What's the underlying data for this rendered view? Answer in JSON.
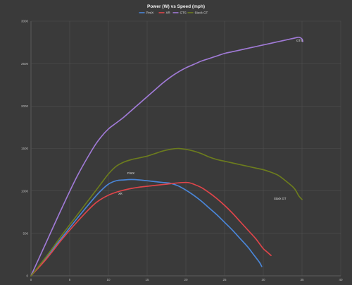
{
  "chart_data": {
    "type": "line",
    "title": "Power (W) vs Speed (mph)",
    "xlabel": "",
    "ylabel": "",
    "xlim": [
      0,
      40
    ],
    "ylim": [
      0,
      3000
    ],
    "x_ticks": [
      0,
      5,
      10,
      15,
      20,
      25,
      30,
      35,
      40
    ],
    "y_ticks": [
      0,
      500,
      1000,
      1500,
      2000,
      2500,
      3000
    ],
    "grid": true,
    "legend_position": "top",
    "series": [
      {
        "name": "PintX",
        "color": "#4a86d8",
        "end_label": "PintX",
        "points": [
          [
            0,
            0
          ],
          [
            2,
            220
          ],
          [
            4,
            450
          ],
          [
            6,
            680
          ],
          [
            8,
            900
          ],
          [
            9,
            1000
          ],
          [
            10,
            1080
          ],
          [
            11,
            1120
          ],
          [
            12,
            1130
          ],
          [
            13,
            1135
          ],
          [
            14,
            1130
          ],
          [
            15,
            1120
          ],
          [
            16,
            1110
          ],
          [
            17,
            1100
          ],
          [
            18,
            1090
          ],
          [
            19,
            1060
          ],
          [
            20,
            1010
          ],
          [
            21,
            950
          ],
          [
            22,
            880
          ],
          [
            23,
            800
          ],
          [
            24,
            720
          ],
          [
            25,
            630
          ],
          [
            26,
            540
          ],
          [
            27,
            440
          ],
          [
            28,
            340
          ],
          [
            28.5,
            280
          ],
          [
            29,
            220
          ],
          [
            29.5,
            160
          ],
          [
            29.8,
            110
          ]
        ]
      },
      {
        "name": "XR",
        "color": "#e0454a",
        "end_label": "XR",
        "points": [
          [
            0,
            0
          ],
          [
            2,
            200
          ],
          [
            4,
            430
          ],
          [
            6,
            640
          ],
          [
            8,
            830
          ],
          [
            9,
            900
          ],
          [
            10,
            950
          ],
          [
            11,
            985
          ],
          [
            12,
            1010
          ],
          [
            13,
            1030
          ],
          [
            14,
            1045
          ],
          [
            15,
            1055
          ],
          [
            16,
            1065
          ],
          [
            17,
            1075
          ],
          [
            18,
            1085
          ],
          [
            19,
            1095
          ],
          [
            20,
            1100
          ],
          [
            20.5,
            1095
          ],
          [
            21,
            1080
          ],
          [
            22,
            1040
          ],
          [
            23,
            980
          ],
          [
            24,
            910
          ],
          [
            25,
            830
          ],
          [
            26,
            740
          ],
          [
            27,
            640
          ],
          [
            28,
            540
          ],
          [
            29,
            440
          ],
          [
            29.5,
            380
          ],
          [
            30,
            320
          ],
          [
            30.5,
            280
          ],
          [
            31,
            240
          ]
        ]
      },
      {
        "name": "GTS",
        "color": "#a07ad6",
        "end_label": "GTS",
        "points": [
          [
            0,
            0
          ],
          [
            2,
            400
          ],
          [
            4,
            800
          ],
          [
            6,
            1180
          ],
          [
            8,
            1500
          ],
          [
            9,
            1630
          ],
          [
            10,
            1730
          ],
          [
            11,
            1800
          ],
          [
            12,
            1870
          ],
          [
            13,
            1950
          ],
          [
            14,
            2030
          ],
          [
            15,
            2110
          ],
          [
            16,
            2190
          ],
          [
            17,
            2270
          ],
          [
            18,
            2340
          ],
          [
            19,
            2400
          ],
          [
            20,
            2450
          ],
          [
            21,
            2490
          ],
          [
            22,
            2530
          ],
          [
            23,
            2560
          ],
          [
            24,
            2590
          ],
          [
            25,
            2620
          ],
          [
            26,
            2640
          ],
          [
            27,
            2660
          ],
          [
            28,
            2680
          ],
          [
            29,
            2700
          ],
          [
            30,
            2720
          ],
          [
            31,
            2740
          ],
          [
            32,
            2760
          ],
          [
            33,
            2780
          ],
          [
            34,
            2800
          ],
          [
            34.6,
            2810
          ],
          [
            35,
            2790
          ],
          [
            35.1,
            2760
          ]
        ]
      },
      {
        "name": "Stock GT",
        "color": "#6c7c1e",
        "end_label": "Stock GT",
        "points": [
          [
            0,
            0
          ],
          [
            2,
            230
          ],
          [
            4,
            480
          ],
          [
            6,
            720
          ],
          [
            8,
            960
          ],
          [
            9,
            1080
          ],
          [
            10,
            1200
          ],
          [
            11,
            1290
          ],
          [
            12,
            1340
          ],
          [
            13,
            1370
          ],
          [
            14,
            1390
          ],
          [
            15,
            1410
          ],
          [
            16,
            1440
          ],
          [
            17,
            1470
          ],
          [
            18,
            1490
          ],
          [
            19,
            1500
          ],
          [
            20,
            1490
          ],
          [
            21,
            1470
          ],
          [
            22,
            1440
          ],
          [
            23,
            1400
          ],
          [
            24,
            1370
          ],
          [
            25,
            1350
          ],
          [
            26,
            1330
          ],
          [
            27,
            1310
          ],
          [
            28,
            1290
          ],
          [
            29,
            1270
          ],
          [
            30,
            1250
          ],
          [
            31,
            1220
          ],
          [
            32,
            1180
          ],
          [
            33,
            1110
          ],
          [
            34,
            1030
          ],
          [
            34.6,
            940
          ],
          [
            35,
            900
          ]
        ]
      }
    ]
  }
}
